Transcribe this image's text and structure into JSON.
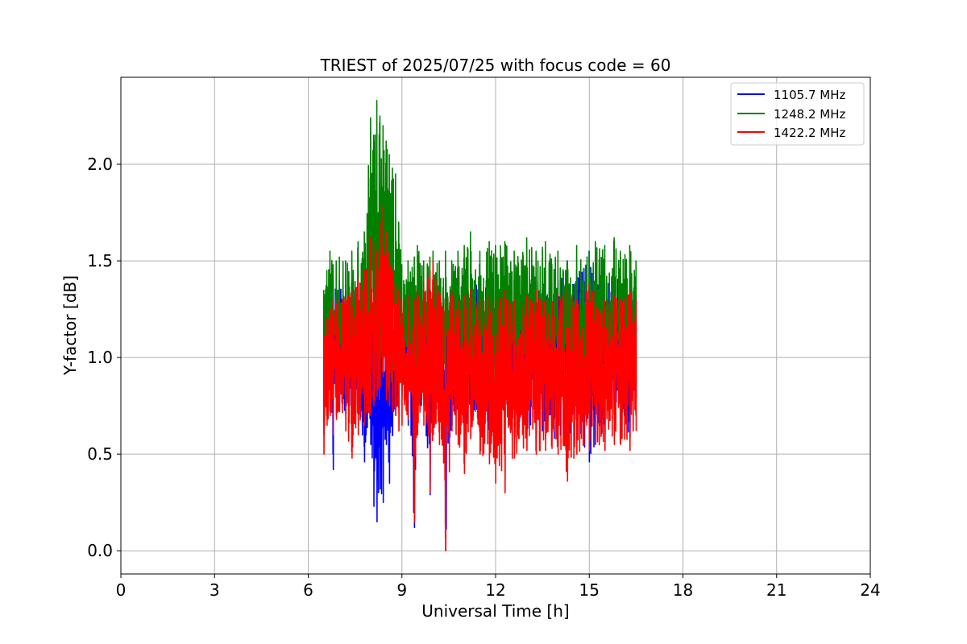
{
  "chart_data": {
    "type": "line",
    "title": "TRIEST of 2025/07/25 with focus code = 60",
    "xlabel": "Universal Time [h]",
    "ylabel": "Y-factor [dB]",
    "xlim": [
      0,
      24
    ],
    "ylim": [
      -0.12,
      2.45
    ],
    "xticks": [
      0,
      3,
      6,
      9,
      12,
      15,
      18,
      21,
      24
    ],
    "yticks": [
      0.0,
      0.5,
      1.0,
      1.5,
      2.0
    ],
    "xtick_labels": [
      "0",
      "3",
      "6",
      "9",
      "12",
      "15",
      "18",
      "21",
      "24"
    ],
    "ytick_labels": [
      "0.0",
      "0.5",
      "1.0",
      "1.5",
      "2.0"
    ],
    "grid": true,
    "legend_position": "top-right",
    "series": [
      {
        "name": "1105.7 MHz",
        "color": "#0000ff",
        "x": [
          6.5,
          6.6,
          6.7,
          6.8,
          6.9,
          7.0,
          7.2,
          7.4,
          7.6,
          7.8,
          8.0,
          8.1,
          8.2,
          8.3,
          8.4,
          8.5,
          8.6,
          8.7,
          8.8,
          8.9,
          9.0,
          9.2,
          9.4,
          9.5,
          9.7,
          9.9,
          10.0,
          10.2,
          10.4,
          10.6,
          10.8,
          11.0,
          11.2,
          11.5,
          11.8,
          12.0,
          12.3,
          12.6,
          13.0,
          13.3,
          13.6,
          14.0,
          14.3,
          14.6,
          15.0,
          15.2,
          15.5,
          15.8,
          16.0,
          16.3,
          16.5
        ],
        "y_min": [
          0.6,
          0.72,
          0.8,
          0.42,
          0.7,
          0.75,
          0.7,
          0.72,
          0.68,
          0.46,
          0.55,
          0.23,
          0.15,
          0.32,
          0.25,
          0.55,
          0.35,
          0.6,
          0.7,
          0.75,
          0.8,
          0.65,
          0.12,
          0.7,
          0.75,
          0.29,
          0.75,
          0.7,
          0.0,
          0.65,
          0.72,
          0.6,
          0.7,
          0.65,
          0.55,
          0.65,
          0.6,
          0.58,
          0.62,
          0.6,
          0.58,
          0.55,
          0.6,
          0.58,
          0.46,
          0.55,
          0.6,
          0.6,
          0.7,
          0.58,
          0.79
        ],
        "y_max": [
          1.25,
          1.3,
          1.35,
          1.4,
          1.35,
          1.4,
          1.35,
          1.4,
          1.35,
          1.3,
          1.3,
          1.2,
          1.1,
          1.15,
          1.3,
          1.25,
          1.2,
          1.25,
          1.3,
          1.35,
          1.3,
          1.35,
          1.3,
          1.35,
          1.35,
          1.35,
          1.4,
          1.35,
          1.4,
          1.35,
          1.4,
          1.35,
          1.4,
          1.4,
          1.35,
          1.4,
          1.35,
          1.4,
          1.35,
          1.4,
          1.45,
          1.4,
          1.5,
          1.45,
          1.55,
          1.45,
          1.4,
          1.45,
          1.4,
          1.4,
          1.35
        ]
      },
      {
        "name": "1248.2 MHz",
        "color": "#008000",
        "x": [
          6.5,
          6.6,
          6.7,
          6.8,
          6.9,
          7.0,
          7.2,
          7.4,
          7.6,
          7.8,
          8.0,
          8.1,
          8.2,
          8.3,
          8.4,
          8.5,
          8.6,
          8.7,
          8.8,
          8.9,
          9.0,
          9.2,
          9.4,
          9.5,
          9.7,
          9.9,
          10.0,
          10.2,
          10.4,
          10.6,
          10.8,
          11.0,
          11.2,
          11.5,
          11.8,
          12.0,
          12.3,
          12.6,
          13.0,
          13.3,
          13.6,
          14.0,
          14.3,
          14.6,
          15.0,
          15.2,
          15.5,
          15.8,
          16.0,
          16.3,
          16.5
        ],
        "y_min": [
          0.7,
          0.8,
          0.85,
          0.8,
          0.82,
          0.85,
          0.82,
          0.85,
          0.8,
          0.75,
          0.9,
          0.9,
          0.85,
          0.9,
          0.95,
          0.9,
          0.85,
          0.85,
          0.85,
          0.85,
          0.85,
          0.85,
          0.8,
          0.85,
          0.85,
          0.8,
          0.85,
          0.8,
          0.75,
          0.8,
          0.85,
          0.8,
          0.82,
          0.8,
          0.8,
          0.8,
          0.78,
          0.8,
          0.8,
          0.78,
          0.8,
          0.8,
          0.78,
          0.8,
          0.78,
          0.8,
          0.8,
          0.8,
          0.78,
          0.8,
          0.85
        ],
        "y_max": [
          1.35,
          1.45,
          1.55,
          1.48,
          1.5,
          1.52,
          1.5,
          1.55,
          1.6,
          1.65,
          2.24,
          2.15,
          2.33,
          2.25,
          2.2,
          2.12,
          2.05,
          1.98,
          1.95,
          1.7,
          1.48,
          1.5,
          1.52,
          1.58,
          1.5,
          1.52,
          1.55,
          1.5,
          1.55,
          1.5,
          1.55,
          1.58,
          1.65,
          1.55,
          1.6,
          1.58,
          1.6,
          1.55,
          1.62,
          1.55,
          1.6,
          1.55,
          1.5,
          1.58,
          1.55,
          1.6,
          1.58,
          1.62,
          1.55,
          1.58,
          1.5
        ]
      },
      {
        "name": "1422.2 MHz",
        "color": "#ff0000",
        "x": [
          6.5,
          6.6,
          6.7,
          6.8,
          6.9,
          7.0,
          7.2,
          7.4,
          7.6,
          7.8,
          8.0,
          8.1,
          8.2,
          8.3,
          8.4,
          8.5,
          8.6,
          8.7,
          8.8,
          8.9,
          9.0,
          9.2,
          9.4,
          9.5,
          9.7,
          9.9,
          10.0,
          10.2,
          10.4,
          10.6,
          10.8,
          11.0,
          11.2,
          11.5,
          11.8,
          12.0,
          12.3,
          12.6,
          13.0,
          13.3,
          13.6,
          14.0,
          14.3,
          14.6,
          15.0,
          15.2,
          15.5,
          15.8,
          16.0,
          16.3,
          16.5
        ],
        "y_min": [
          0.5,
          0.65,
          0.7,
          0.6,
          0.68,
          0.72,
          0.62,
          0.48,
          0.6,
          0.65,
          0.7,
          0.75,
          0.8,
          0.85,
          0.9,
          0.78,
          0.75,
          0.72,
          0.7,
          0.62,
          0.65,
          0.68,
          0.15,
          0.6,
          0.65,
          0.3,
          0.6,
          0.55,
          0.0,
          0.62,
          0.55,
          0.4,
          0.58,
          0.5,
          0.45,
          0.35,
          0.3,
          0.48,
          0.52,
          0.5,
          0.52,
          0.5,
          0.36,
          0.5,
          0.52,
          0.55,
          0.52,
          0.55,
          0.55,
          0.52,
          0.62
        ],
        "y_max": [
          1.1,
          1.2,
          1.25,
          1.3,
          1.28,
          1.3,
          1.32,
          1.35,
          1.4,
          1.45,
          1.62,
          1.6,
          1.55,
          1.7,
          1.78,
          1.65,
          1.55,
          1.45,
          1.38,
          1.35,
          1.3,
          1.32,
          1.3,
          1.35,
          1.4,
          1.45,
          1.5,
          1.35,
          1.3,
          1.35,
          1.3,
          1.32,
          1.35,
          1.3,
          1.32,
          1.3,
          1.35,
          1.3,
          1.32,
          1.35,
          1.3,
          1.33,
          1.35,
          1.3,
          1.38,
          1.35,
          1.3,
          1.32,
          1.3,
          1.35,
          1.3
        ]
      }
    ]
  }
}
